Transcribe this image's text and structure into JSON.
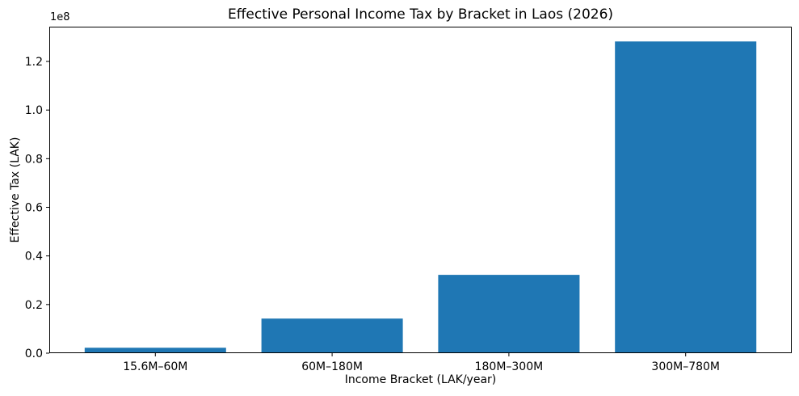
{
  "chart_data": {
    "type": "bar",
    "title": "Effective Personal Income Tax by Bracket in Laos (2026)",
    "xlabel": "Income Bracket (LAK/year)",
    "ylabel": "Effective Tax (LAK)",
    "scale_label": "1e8",
    "categories": [
      "15.6M–60M",
      "60M–180M",
      "180M–300M",
      "300M–780M"
    ],
    "values": [
      2220000,
      14220000,
      32220000,
      128220000
    ],
    "bar_color": "#1f77b4",
    "ylim": [
      0,
      134300000
    ],
    "yticks": [
      0,
      20000000,
      40000000,
      60000000,
      80000000,
      100000000,
      120000000
    ],
    "ytick_labels": [
      "0.0",
      "0.2",
      "0.4",
      "0.6",
      "0.8",
      "1.0",
      "1.2"
    ],
    "grid": false,
    "legend": null,
    "axis_color": "#000000",
    "background_color": "#ffffff"
  }
}
